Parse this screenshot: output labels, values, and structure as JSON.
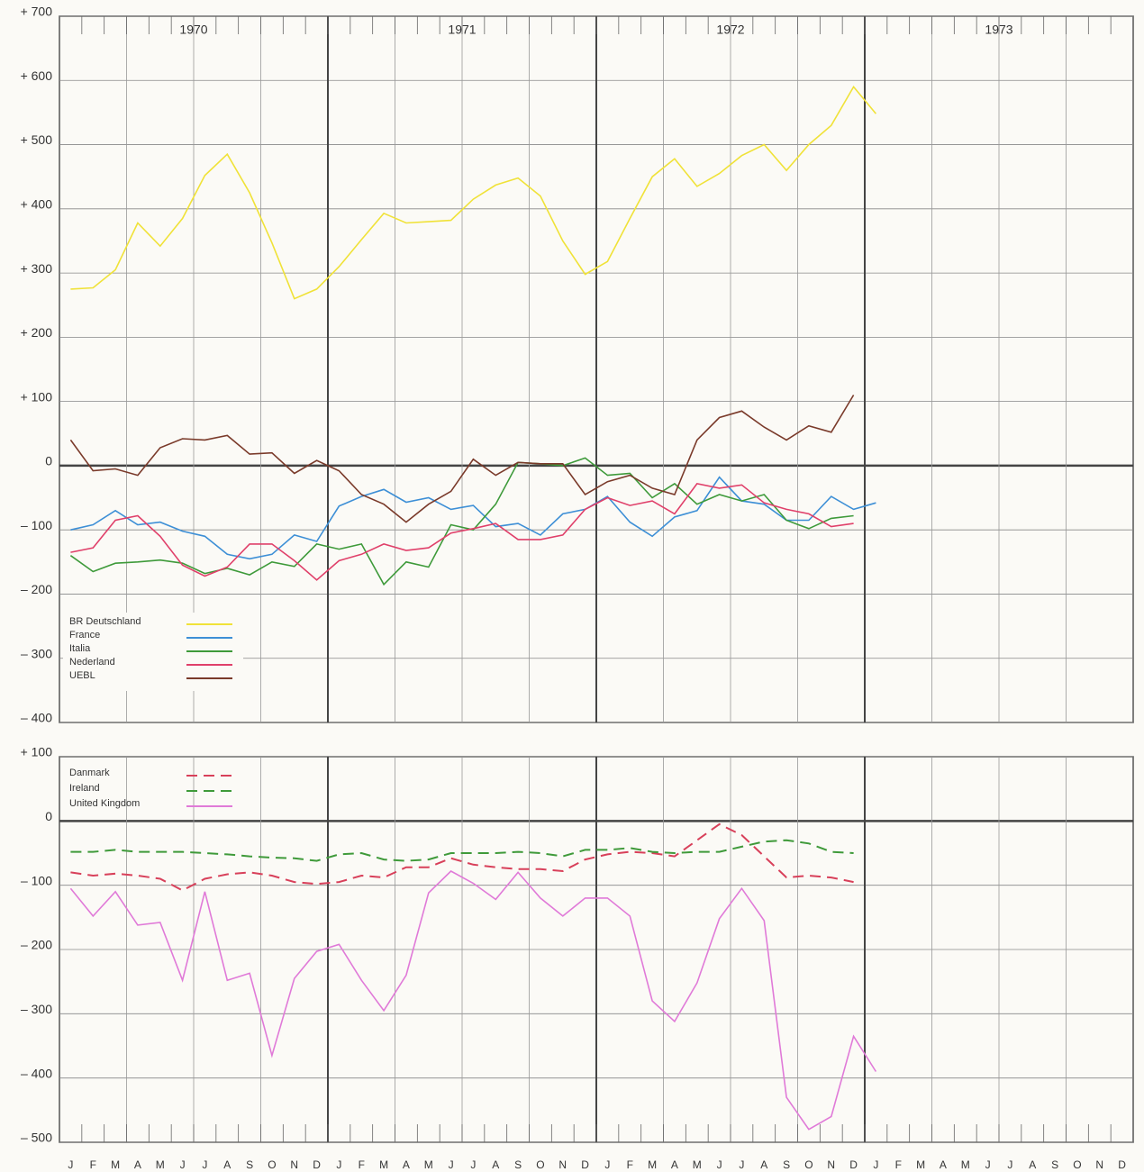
{
  "chart_data": [
    {
      "type": "line",
      "years": [
        "1970",
        "1971",
        "1972",
        "1973"
      ],
      "ylim": [
        -400,
        700
      ],
      "yticks": [
        {
          "value": -400,
          "label": "– 400"
        },
        {
          "value": -300,
          "label": "– 300"
        },
        {
          "value": -200,
          "label": "– 200"
        },
        {
          "value": -100,
          "label": "– 100"
        },
        0,
        {
          "value": 100,
          "label": "+ 100"
        },
        {
          "value": 200,
          "label": "+ 200"
        },
        {
          "value": 300,
          "label": "+ 300"
        },
        {
          "value": 400,
          "label": "+ 400"
        },
        {
          "value": 500,
          "label": "+ 500"
        },
        {
          "value": 600,
          "label": "+ 600"
        },
        {
          "value": 700,
          "label": "+ 700"
        }
      ],
      "grid": true,
      "legend": "lower left",
      "series": [
        {
          "name": "BR  Deutschland",
          "color": "#f0e238",
          "dash": false,
          "values": [
            275,
            277,
            305,
            378,
            342,
            385,
            452,
            485,
            425,
            347,
            260,
            275,
            310,
            352,
            393,
            378,
            380,
            382,
            415,
            437,
            448,
            420,
            350,
            298,
            318,
            385,
            450,
            478,
            435,
            455,
            483,
            500,
            460,
            500,
            530,
            590,
            548,
            null,
            null,
            null,
            null,
            null,
            null,
            null,
            null,
            null,
            null,
            null
          ]
        },
        {
          "name": "France",
          "color": "#3d8fd6",
          "dash": false,
          "values": [
            -100,
            -92,
            -70,
            -92,
            -88,
            -102,
            -110,
            -138,
            -145,
            -138,
            -108,
            -118,
            -63,
            -48,
            -37,
            -57,
            -50,
            -68,
            -62,
            -95,
            -90,
            -108,
            -75,
            -68,
            -48,
            -88,
            -110,
            -80,
            -70,
            -18,
            -55,
            -60,
            -85,
            -85,
            -48,
            -68,
            -58,
            null,
            null,
            null,
            null,
            null,
            null,
            null,
            null,
            null,
            null,
            null
          ]
        },
        {
          "name": "Italia",
          "color": "#3e9a3a",
          "dash": false,
          "values": [
            -140,
            -165,
            -152,
            -150,
            -147,
            -152,
            -168,
            -160,
            -170,
            -150,
            -157,
            -122,
            -130,
            -122,
            -185,
            -150,
            -158,
            -92,
            -100,
            -60,
            5,
            3,
            0,
            12,
            -15,
            -12,
            -50,
            -28,
            -60,
            -45,
            -55,
            -45,
            -85,
            -98,
            -82,
            -78,
            null,
            null,
            null,
            null,
            null,
            null,
            null,
            null,
            null,
            null,
            null,
            null
          ]
        },
        {
          "name": "Nederland",
          "color": "#e0406a",
          "dash": false,
          "values": [
            -135,
            -128,
            -85,
            -78,
            -110,
            -155,
            -172,
            -158,
            -122,
            -122,
            -148,
            -178,
            -148,
            -138,
            -122,
            -132,
            -128,
            -105,
            -98,
            -90,
            -115,
            -115,
            -108,
            -68,
            -50,
            -62,
            -55,
            -75,
            -28,
            -35,
            -30,
            -58,
            -68,
            -75,
            -95,
            -90,
            null,
            null,
            null,
            null,
            null,
            null,
            null,
            null,
            null,
            null,
            null,
            null
          ]
        },
        {
          "name": "UEBL",
          "color": "#7a3a2a",
          "dash": false,
          "values": [
            40,
            -8,
            -5,
            -15,
            28,
            42,
            40,
            47,
            18,
            20,
            -12,
            8,
            -8,
            -45,
            -60,
            -88,
            -60,
            -40,
            10,
            -15,
            5,
            3,
            3,
            -45,
            -25,
            -15,
            -35,
            -45,
            40,
            75,
            85,
            60,
            40,
            62,
            52,
            110,
            null,
            null,
            null,
            null,
            null,
            null,
            null,
            null,
            null,
            null,
            null,
            null
          ]
        }
      ]
    },
    {
      "type": "line",
      "categories": [
        "J",
        "F",
        "M",
        "A",
        "M",
        "J",
        "J",
        "A",
        "S",
        "O",
        "N",
        "D",
        "J",
        "F",
        "M",
        "A",
        "M",
        "J",
        "J",
        "A",
        "S",
        "O",
        "N",
        "D",
        "J",
        "F",
        "M",
        "A",
        "M",
        "J",
        "J",
        "A",
        "S",
        "O",
        "N",
        "D",
        "J",
        "F",
        "M",
        "A",
        "M",
        "J",
        "J",
        "A",
        "S",
        "O",
        "N",
        "D"
      ],
      "ylim": [
        -500,
        100
      ],
      "yticks": [
        {
          "value": -500,
          "label": "– 500"
        },
        {
          "value": -400,
          "label": "– 400"
        },
        {
          "value": -300,
          "label": "– 300"
        },
        {
          "value": -200,
          "label": "– 200"
        },
        {
          "value": -100,
          "label": "– 100"
        },
        0,
        {
          "value": 100,
          "label": "+ 100"
        }
      ],
      "grid": true,
      "legend": "upper left",
      "series": [
        {
          "name": "Danmark",
          "color": "#d8405a",
          "dash": true,
          "values": [
            -80,
            -85,
            -82,
            -85,
            -90,
            -108,
            -90,
            -83,
            -80,
            -85,
            -95,
            -98,
            -95,
            -85,
            -88,
            -72,
            -72,
            -58,
            -68,
            -72,
            -75,
            -75,
            -78,
            -60,
            -52,
            -48,
            -50,
            -55,
            -30,
            -5,
            -22,
            -55,
            -88,
            -85,
            -88,
            -95,
            null,
            null,
            null,
            null,
            null,
            null,
            null,
            null,
            null,
            null,
            null,
            null
          ]
        },
        {
          "name": "Ireland",
          "color": "#3f9a3a",
          "dash": true,
          "values": [
            -48,
            -48,
            -45,
            -48,
            -48,
            -48,
            -50,
            -52,
            -55,
            -57,
            -58,
            -62,
            -52,
            -50,
            -60,
            -62,
            -60,
            -50,
            -50,
            -50,
            -48,
            -50,
            -55,
            -45,
            -45,
            -42,
            -48,
            -50,
            -48,
            -48,
            -40,
            -32,
            -30,
            -35,
            -48,
            -50,
            null,
            null,
            null,
            null,
            null,
            null,
            null,
            null,
            null,
            null,
            null,
            null
          ]
        },
        {
          "name": "United Kingdom",
          "color": "#e07ad8",
          "dash": false,
          "values": [
            -105,
            -148,
            -110,
            -162,
            -158,
            -248,
            -110,
            -248,
            -237,
            -365,
            -245,
            -203,
            -192,
            -248,
            -295,
            -240,
            -112,
            -78,
            -97,
            -122,
            -80,
            -120,
            -148,
            -120,
            -120,
            -148,
            -280,
            -312,
            -252,
            -152,
            -105,
            -155,
            -430,
            -480,
            -460,
            -335,
            -390,
            null,
            null,
            null,
            null,
            null,
            null,
            null,
            null,
            null,
            null,
            null
          ]
        }
      ]
    }
  ]
}
